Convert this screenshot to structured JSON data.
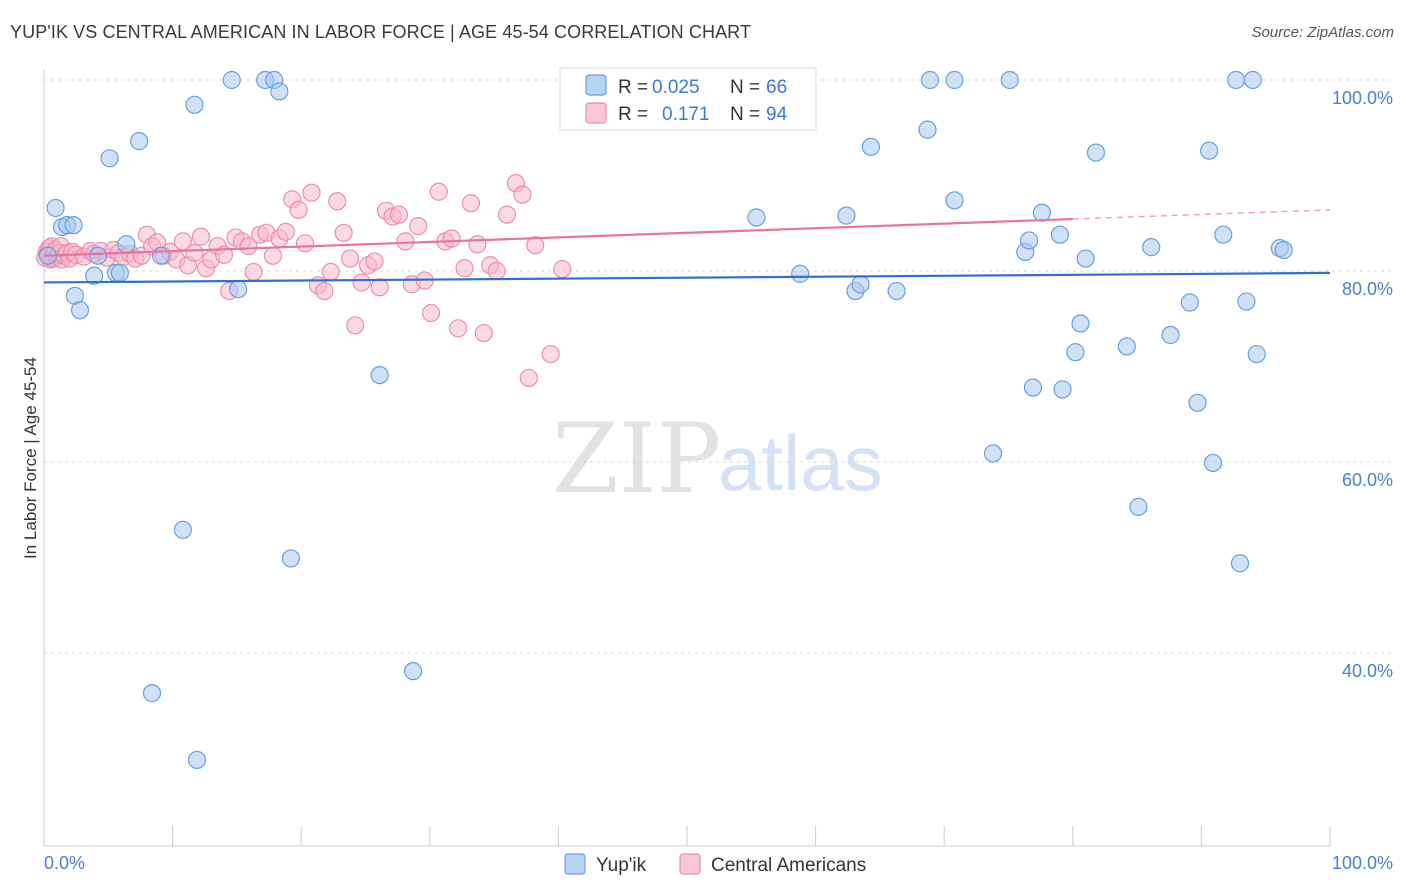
{
  "title": "YUP'IK VS CENTRAL AMERICAN IN LABOR FORCE | AGE 45-54 CORRELATION CHART",
  "source": "Source: ZipAtlas.com",
  "watermark": {
    "zip": "ZIP",
    "atlas": "atlas"
  },
  "colors": {
    "blue_fill": "#a8c8f0",
    "blue_stroke": "#6a9fdc",
    "blue_line": "#2f6fcf",
    "pink_fill": "#f7b8cb",
    "pink_stroke": "#e890ad",
    "pink_line": "#e8749b",
    "tick_label": "#4a7fcf"
  },
  "legend": {
    "rows": [
      {
        "r_label": "R =",
        "r_value": "0.025",
        "n_label": "N =",
        "n_value": "66"
      },
      {
        "r_label": "R =",
        "r_value": "0.171",
        "n_label": "N =",
        "n_value": "94"
      }
    ]
  },
  "bottom_legend": [
    "Yup'ik",
    "Central Americans"
  ],
  "chart_data": {
    "type": "scatter",
    "title": "YUP'IK VS CENTRAL AMERICAN IN LABOR FORCE | AGE 45-54 CORRELATION CHART",
    "xlabel": "",
    "ylabel": "In Labor Force | Age 45-54",
    "xlim": [
      0,
      100
    ],
    "ylim": [
      20,
      102
    ],
    "x_ticks": [
      "0.0%",
      "100.0%"
    ],
    "y_ticks": [
      {
        "value": 100,
        "label": "100.0%"
      },
      {
        "value": 80,
        "label": "80.0%"
      },
      {
        "value": 60,
        "label": "60.0%"
      },
      {
        "value": 40,
        "label": "40.0%"
      }
    ],
    "grid": "horizontal dashed",
    "legend_position": "top-center",
    "series": [
      {
        "name": "Yup'ik",
        "r": 0.025,
        "n": 66,
        "trend": {
          "x0": 0,
          "y0": 78.8,
          "x1": 100,
          "y1": 79.8,
          "dashed_from": null
        },
        "points": [
          [
            0.3,
            81.6
          ],
          [
            0.9,
            86.6
          ],
          [
            1.4,
            84.6
          ],
          [
            1.8,
            84.8
          ],
          [
            2.3,
            84.8
          ],
          [
            2.4,
            77.4
          ],
          [
            2.8,
            75.9
          ],
          [
            3.9,
            79.5
          ],
          [
            4.2,
            81.6
          ],
          [
            5.1,
            91.8
          ],
          [
            5.6,
            79.8
          ],
          [
            5.9,
            79.8
          ],
          [
            6.4,
            82.8
          ],
          [
            7.4,
            93.6
          ],
          [
            8.4,
            35.8
          ],
          [
            9.1,
            81.6
          ],
          [
            10.8,
            52.9
          ],
          [
            11.7,
            97.4
          ],
          [
            11.9,
            28.8
          ],
          [
            14.6,
            100
          ],
          [
            15.1,
            78.1
          ],
          [
            17.2,
            100
          ],
          [
            17.9,
            100
          ],
          [
            18.3,
            98.8
          ],
          [
            19.2,
            49.9
          ],
          [
            26.1,
            69.1
          ],
          [
            28.7,
            38.1
          ],
          [
            55.4,
            85.6
          ],
          [
            58.8,
            79.7
          ],
          [
            62.4,
            85.8
          ],
          [
            63.1,
            77.9
          ],
          [
            63.5,
            78.6
          ],
          [
            64.3,
            93.0
          ],
          [
            66.3,
            77.9
          ],
          [
            68.7,
            94.8
          ],
          [
            68.9,
            100
          ],
          [
            70.8,
            87.4
          ],
          [
            70.8,
            100
          ],
          [
            73.8,
            60.9
          ],
          [
            75.1,
            100
          ],
          [
            76.3,
            82.0
          ],
          [
            76.6,
            83.2
          ],
          [
            76.9,
            67.8
          ],
          [
            77.6,
            86.1
          ],
          [
            79.0,
            83.8
          ],
          [
            79.2,
            67.6
          ],
          [
            80.2,
            71.5
          ],
          [
            80.6,
            74.5
          ],
          [
            81.0,
            81.3
          ],
          [
            81.8,
            92.4
          ],
          [
            84.2,
            72.1
          ],
          [
            85.1,
            55.3
          ],
          [
            86.1,
            82.5
          ],
          [
            87.6,
            73.3
          ],
          [
            89.1,
            76.7
          ],
          [
            89.7,
            66.2
          ],
          [
            90.6,
            92.6
          ],
          [
            90.9,
            59.9
          ],
          [
            91.7,
            83.8
          ],
          [
            92.7,
            100
          ],
          [
            93.0,
            49.4
          ],
          [
            93.5,
            76.8
          ],
          [
            94.0,
            100
          ],
          [
            94.3,
            71.3
          ],
          [
            96.1,
            82.4
          ],
          [
            96.4,
            82.2
          ]
        ]
      },
      {
        "name": "Central Americans",
        "r": 0.171,
        "n": 94,
        "trend": {
          "x0": 0,
          "y0": 81.6,
          "x1": 100,
          "y1": 86.4,
          "dashed_from": 80
        },
        "points": [
          [
            0.1,
            81.4
          ],
          [
            0.2,
            82.0
          ],
          [
            0.3,
            81.8
          ],
          [
            0.4,
            82.4
          ],
          [
            0.5,
            81.2
          ],
          [
            0.6,
            82.6
          ],
          [
            0.7,
            81.3
          ],
          [
            0.8,
            81.9
          ],
          [
            0.9,
            82.2
          ],
          [
            1.0,
            81.5
          ],
          [
            1.1,
            81.7
          ],
          [
            1.2,
            81.9
          ],
          [
            1.3,
            82.6
          ],
          [
            1.4,
            81.2
          ],
          [
            1.6,
            81.6
          ],
          [
            1.8,
            81.9
          ],
          [
            2.0,
            81.3
          ],
          [
            2.2,
            82.0
          ],
          [
            2.5,
            81.7
          ],
          [
            3.1,
            81.5
          ],
          [
            3.6,
            82.1
          ],
          [
            3.9,
            81.8
          ],
          [
            4.4,
            82.1
          ],
          [
            4.9,
            81.4
          ],
          [
            5.4,
            82.2
          ],
          [
            5.8,
            81.9
          ],
          [
            6.2,
            81.5
          ],
          [
            6.7,
            81.8
          ],
          [
            7.1,
            81.3
          ],
          [
            7.6,
            81.6
          ],
          [
            8.0,
            83.8
          ],
          [
            8.4,
            82.6
          ],
          [
            8.8,
            83.0
          ],
          [
            9.3,
            81.6
          ],
          [
            9.8,
            82.0
          ],
          [
            10.3,
            81.2
          ],
          [
            10.8,
            83.1
          ],
          [
            11.2,
            80.6
          ],
          [
            11.7,
            81.9
          ],
          [
            12.2,
            83.6
          ],
          [
            12.6,
            80.3
          ],
          [
            13.0,
            81.2
          ],
          [
            13.5,
            82.6
          ],
          [
            14.0,
            81.7
          ],
          [
            14.4,
            77.9
          ],
          [
            14.9,
            83.5
          ],
          [
            15.4,
            83.1
          ],
          [
            15.9,
            82.6
          ],
          [
            16.3,
            79.9
          ],
          [
            16.8,
            83.8
          ],
          [
            17.3,
            84.0
          ],
          [
            17.8,
            81.6
          ],
          [
            18.3,
            83.4
          ],
          [
            18.8,
            84.1
          ],
          [
            19.3,
            87.5
          ],
          [
            19.8,
            86.4
          ],
          [
            20.3,
            82.9
          ],
          [
            20.8,
            88.2
          ],
          [
            21.3,
            78.5
          ],
          [
            21.8,
            77.9
          ],
          [
            22.3,
            79.9
          ],
          [
            22.8,
            87.3
          ],
          [
            23.3,
            84.0
          ],
          [
            23.8,
            81.3
          ],
          [
            24.2,
            74.3
          ],
          [
            24.7,
            78.8
          ],
          [
            25.2,
            80.6
          ],
          [
            25.7,
            81.0
          ],
          [
            26.1,
            78.3
          ],
          [
            26.6,
            86.3
          ],
          [
            27.1,
            85.7
          ],
          [
            27.6,
            85.9
          ],
          [
            28.1,
            83.1
          ],
          [
            28.6,
            78.6
          ],
          [
            29.1,
            84.7
          ],
          [
            29.6,
            79.0
          ],
          [
            30.1,
            75.6
          ],
          [
            30.7,
            88.3
          ],
          [
            31.2,
            83.1
          ],
          [
            31.7,
            83.4
          ],
          [
            32.2,
            74.0
          ],
          [
            32.7,
            80.3
          ],
          [
            33.2,
            87.1
          ],
          [
            33.7,
            82.8
          ],
          [
            34.2,
            73.5
          ],
          [
            34.7,
            80.6
          ],
          [
            35.2,
            80.0
          ],
          [
            36.0,
            85.9
          ],
          [
            36.7,
            89.2
          ],
          [
            37.2,
            88.0
          ],
          [
            37.7,
            68.8
          ],
          [
            38.2,
            82.7
          ],
          [
            39.4,
            71.3
          ],
          [
            40.3,
            80.2
          ]
        ]
      }
    ]
  }
}
